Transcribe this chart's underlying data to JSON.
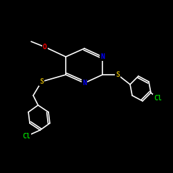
{
  "background_color": "#000000",
  "bond_color": "#ffffff",
  "atom_colors": {
    "N": "#0000ff",
    "S": "#ccaa00",
    "O": "#ff0000",
    "Cl": "#00cc00",
    "C": "#ffffff"
  },
  "font_size": 7,
  "bond_width": 1.2
}
